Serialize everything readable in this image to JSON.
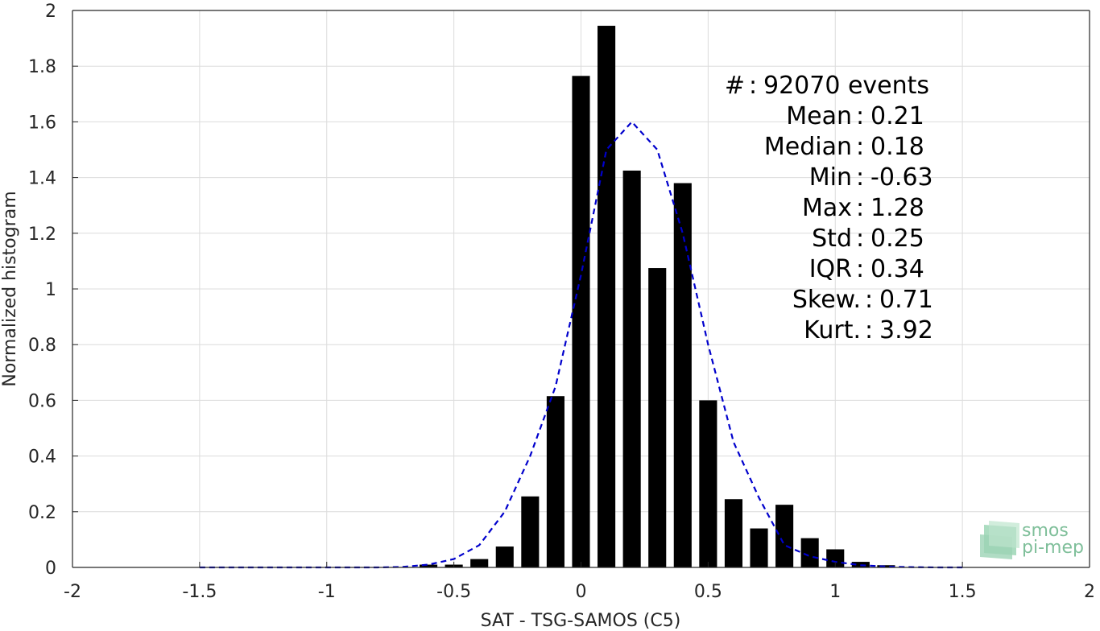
{
  "chart_data": {
    "type": "bar",
    "xlabel": "SAT - TSG-SAMOS (C5)",
    "ylabel": "Normalized histogram",
    "xlim": [
      -2,
      2
    ],
    "ylim": [
      0,
      2
    ],
    "xticks": [
      "-2",
      "-1.5",
      "-1",
      "-0.5",
      "0",
      "0.5",
      "1",
      "1.5",
      "2"
    ],
    "yticks": [
      "0",
      "0.2",
      "0.4",
      "0.6",
      "0.8",
      "1",
      "1.2",
      "1.4",
      "1.6",
      "1.8",
      "2"
    ],
    "grid": true,
    "bar_color": "#000000",
    "bar_width": 0.07,
    "bars": {
      "x": [
        -0.6,
        -0.5,
        -0.4,
        -0.3,
        -0.2,
        -0.1,
        0.0,
        0.1,
        0.2,
        0.3,
        0.4,
        0.5,
        0.6,
        0.7,
        0.8,
        0.9,
        1.0,
        1.1,
        1.2
      ],
      "values": [
        0.01,
        0.01,
        0.03,
        0.075,
        0.255,
        0.615,
        1.765,
        1.945,
        1.425,
        1.075,
        1.38,
        0.6,
        0.245,
        0.14,
        0.225,
        0.105,
        0.065,
        0.02,
        0.008
      ]
    },
    "fit_curve": {
      "color": "#0000cc",
      "style": "dashed",
      "x": [
        -1.5,
        -1.4,
        -1.3,
        -1.2,
        -1.1,
        -1.0,
        -0.9,
        -0.8,
        -0.7,
        -0.6,
        -0.5,
        -0.4,
        -0.3,
        -0.2,
        -0.1,
        0.0,
        0.1,
        0.2,
        0.3,
        0.4,
        0.5,
        0.6,
        0.7,
        0.8,
        0.9,
        1.0,
        1.1,
        1.2,
        1.3,
        1.4,
        1.5
      ],
      "y": [
        0,
        0,
        0,
        0,
        0,
        0,
        0,
        0,
        0.002,
        0.01,
        0.03,
        0.08,
        0.2,
        0.4,
        0.65,
        1.05,
        1.5,
        1.6,
        1.5,
        1.2,
        0.8,
        0.45,
        0.25,
        0.08,
        0.04,
        0.02,
        0.008,
        0.003,
        0.001,
        0,
        0
      ]
    },
    "annotations": [
      {
        "label": "#  ",
        "value": "92070 events"
      },
      {
        "label": "Mean",
        "value": "0.21"
      },
      {
        "label": "Median",
        "value": "0.18"
      },
      {
        "label": "Min",
        "value": "-0.63"
      },
      {
        "label": "Max",
        "value": "1.28"
      },
      {
        "label": "Std",
        "value": "0.25"
      },
      {
        "label": "IQR",
        "value": "0.34"
      },
      {
        "label": "Skew.",
        "value": "0.71"
      },
      {
        "label": "Kurt.",
        "value": "3.92"
      }
    ]
  },
  "logo": {
    "line1": "smos",
    "line2": "pi-mep"
  }
}
